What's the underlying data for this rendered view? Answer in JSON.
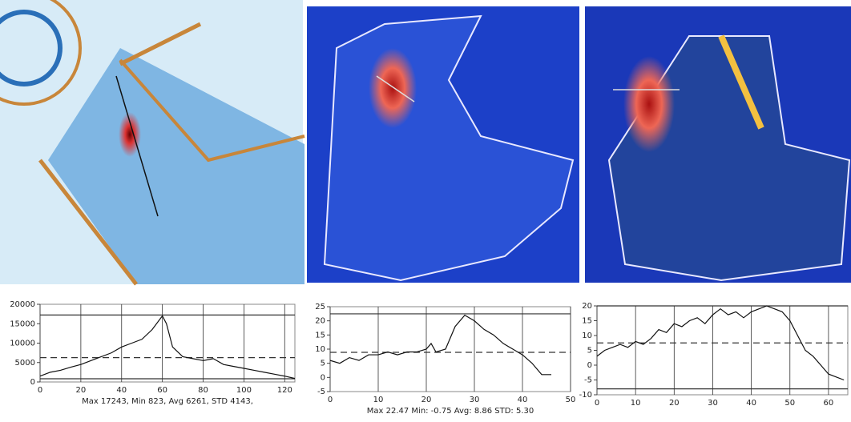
{
  "chart_data": [
    {
      "type": "line",
      "color": "#111",
      "x": [
        0,
        5,
        10,
        15,
        20,
        25,
        30,
        35,
        40,
        45,
        50,
        55,
        60,
        62,
        65,
        70,
        75,
        80,
        85,
        90,
        95,
        100,
        105,
        110,
        115,
        120,
        125
      ],
      "values": [
        1500,
        2500,
        3000,
        3800,
        4500,
        5500,
        6500,
        7500,
        9000,
        10000,
        11000,
        13500,
        17000,
        15000,
        9000,
        6500,
        6000,
        5500,
        6000,
        4500,
        4000,
        3500,
        3000,
        2500,
        2000,
        1500,
        900
      ],
      "xlim": [
        0,
        125
      ],
      "ylim": [
        0,
        20000
      ],
      "xticks": [
        0,
        20,
        40,
        60,
        80,
        100,
        120
      ],
      "yticks": [
        0,
        5000,
        10000,
        15000,
        20000
      ],
      "reference_lines": [
        {
          "value": 17243,
          "style": "solid"
        },
        {
          "value": 6261,
          "style": "dashed"
        },
        {
          "value": 823,
          "style": "solid"
        }
      ],
      "caption": "Max 17243, Min 823, Avg 6261, STD 4143,"
    },
    {
      "type": "line",
      "color": "#111",
      "x": [
        0,
        2,
        4,
        6,
        8,
        10,
        12,
        14,
        16,
        18,
        20,
        21,
        22,
        24,
        26,
        28,
        30,
        32,
        34,
        36,
        38,
        40,
        42,
        44,
        46
      ],
      "values": [
        6,
        5,
        7,
        6,
        8,
        8,
        9,
        8,
        9,
        9,
        10,
        12,
        9,
        10,
        18,
        22,
        20,
        17,
        15,
        12,
        10,
        8,
        5,
        1,
        1
      ],
      "xlim": [
        0,
        50
      ],
      "ylim": [
        -5,
        25
      ],
      "xticks": [
        0,
        10,
        20,
        30,
        40,
        50
      ],
      "yticks": [
        -5,
        0,
        5,
        10,
        15,
        20,
        25
      ],
      "reference_lines": [
        {
          "value": 22.47,
          "style": "solid"
        },
        {
          "value": 8.86,
          "style": "dashed"
        }
      ],
      "caption": "Max 22.47  Min: -0.75  Avg: 8.86  STD: 5.30"
    },
    {
      "type": "line",
      "color": "#111",
      "x": [
        0,
        2,
        4,
        6,
        8,
        10,
        12,
        14,
        16,
        18,
        20,
        22,
        24,
        26,
        28,
        30,
        32,
        34,
        36,
        38,
        40,
        42,
        44,
        46,
        48,
        50,
        52,
        54,
        56,
        58,
        60,
        62,
        64
      ],
      "values": [
        3,
        5,
        6,
        7,
        6,
        8,
        7,
        9,
        12,
        11,
        14,
        13,
        15,
        16,
        14,
        17,
        19,
        17,
        18,
        16,
        18,
        19,
        20,
        19,
        18,
        15,
        10,
        5,
        3,
        0,
        -3,
        -4,
        -5
      ],
      "xlim": [
        0,
        65
      ],
      "ylim": [
        -10,
        20
      ],
      "xticks": [
        0,
        10,
        20,
        30,
        40,
        50,
        60
      ],
      "yticks": [
        -10,
        -5,
        0,
        5,
        10,
        15,
        20
      ],
      "reference_lines": [
        {
          "value": 20,
          "style": "solid"
        },
        {
          "value": 7.5,
          "style": "dashed"
        },
        {
          "value": -8,
          "style": "solid"
        }
      ]
    }
  ]
}
